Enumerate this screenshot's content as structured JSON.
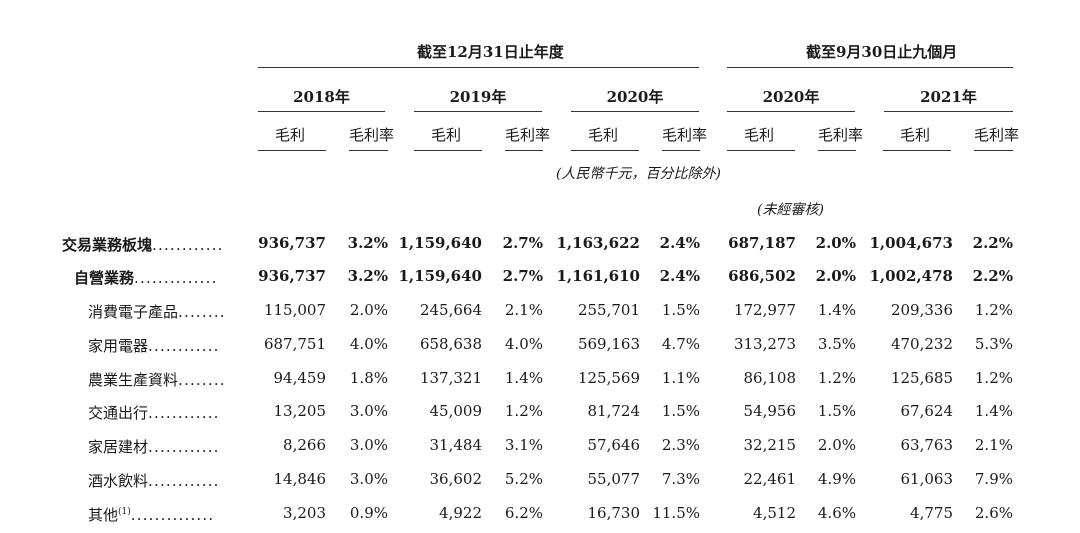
{
  "header": {
    "group_annual": "截至12月31日止年度",
    "group_nine": "截至9月30日止九個月",
    "years": [
      "2018年",
      "2019年",
      "2020年",
      "2020年",
      "2021年"
    ],
    "col_gross_profit": "毛利",
    "col_margin": "毛利率",
    "note_unit": "(人民幣千元，百分比除外)",
    "note_unaudited": "(未經審核)"
  },
  "rows": [
    {
      "label": "交易業務板塊",
      "dots": "............",
      "bold": true,
      "indent": 0,
      "values": [
        "936,737",
        "3.2%",
        "1,159,640",
        "2.7%",
        "1,163,622",
        "2.4%",
        "687,187",
        "2.0%",
        "1,004,673",
        "2.2%"
      ]
    },
    {
      "label": "自營業務",
      "dots": "..............",
      "bold": true,
      "indent": 1,
      "values": [
        "936,737",
        "3.2%",
        "1,159,640",
        "2.7%",
        "1,161,610",
        "2.4%",
        "686,502",
        "2.0%",
        "1,002,478",
        "2.2%"
      ]
    },
    {
      "label": "消費電子產品",
      "dots": "........",
      "bold": false,
      "indent": 2,
      "values": [
        "115,007",
        "2.0%",
        "245,664",
        "2.1%",
        "255,701",
        "1.5%",
        "172,977",
        "1.4%",
        "209,336",
        "1.2%"
      ]
    },
    {
      "label": "家用電器",
      "dots": "............",
      "bold": false,
      "indent": 2,
      "values": [
        "687,751",
        "4.0%",
        "658,638",
        "4.0%",
        "569,163",
        "4.7%",
        "313,273",
        "3.5%",
        "470,232",
        "5.3%"
      ]
    },
    {
      "label": "農業生產資料",
      "dots": "........",
      "bold": false,
      "indent": 2,
      "values": [
        "94,459",
        "1.8%",
        "137,321",
        "1.4%",
        "125,569",
        "1.1%",
        "86,108",
        "1.2%",
        "125,685",
        "1.2%"
      ]
    },
    {
      "label": "交通出行",
      "dots": "............",
      "bold": false,
      "indent": 2,
      "values": [
        "13,205",
        "3.0%",
        "45,009",
        "1.2%",
        "81,724",
        "1.5%",
        "54,956",
        "1.5%",
        "67,624",
        "1.4%"
      ]
    },
    {
      "label": "家居建材",
      "dots": "............",
      "bold": false,
      "indent": 2,
      "values": [
        "8,266",
        "3.0%",
        "31,484",
        "3.1%",
        "57,646",
        "2.3%",
        "32,215",
        "2.0%",
        "63,763",
        "2.1%"
      ]
    },
    {
      "label": "酒水飲料",
      "dots": "............",
      "bold": false,
      "indent": 2,
      "values": [
        "14,846",
        "3.0%",
        "36,602",
        "5.2%",
        "55,077",
        "7.3%",
        "22,461",
        "4.9%",
        "61,063",
        "7.9%"
      ]
    },
    {
      "label": "其他",
      "sup": "(1)",
      "dots": "..............",
      "bold": false,
      "indent": 2,
      "values": [
        "3,203",
        "0.9%",
        "4,922",
        "6.2%",
        "16,730",
        "11.5%",
        "4,512",
        "4.6%",
        "4,775",
        "2.6%"
      ]
    }
  ]
}
